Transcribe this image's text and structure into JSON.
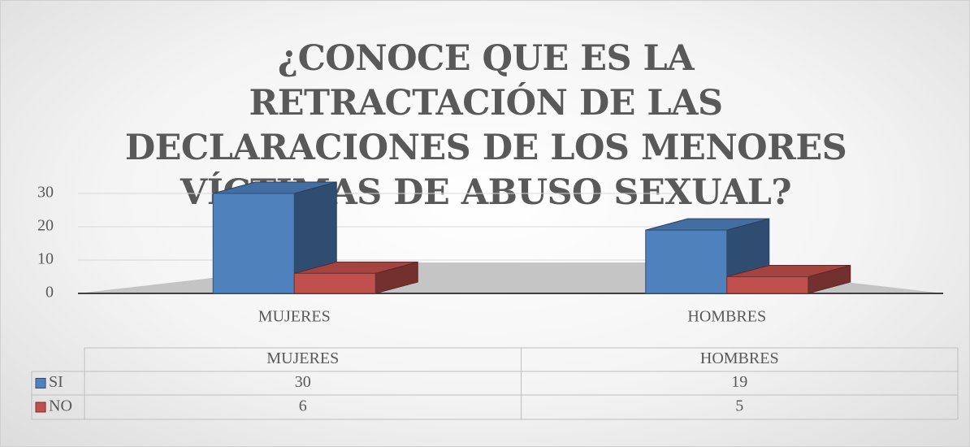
{
  "chart_data": {
    "type": "bar3d",
    "title": "¿CONOCE QUE ES LA RETRACTACIÓN DE LAS DECLARACIONES DE LOS MENORES VÍCTIMAS DE ABUSO SEXUAL?",
    "categories": [
      "MUJERES",
      "HOMBRES"
    ],
    "series": [
      {
        "name": "SI",
        "color": "#4f81bd",
        "values": [
          30,
          19
        ]
      },
      {
        "name": "NO",
        "color": "#c0504d",
        "values": [
          6,
          5
        ]
      }
    ],
    "ylim": [
      0,
      30
    ],
    "yticks": [
      0,
      10,
      20,
      30
    ],
    "grid": true,
    "data_table": true
  }
}
